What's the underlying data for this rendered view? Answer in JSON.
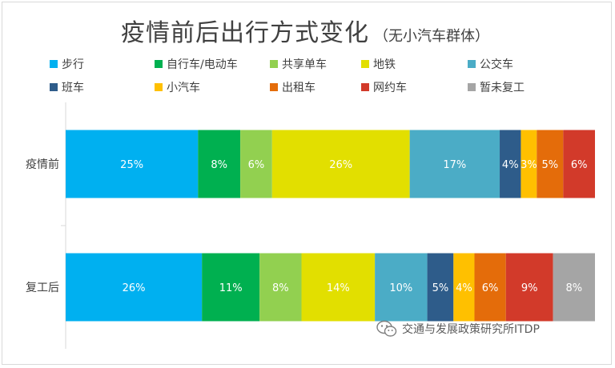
{
  "chart_data": {
    "type": "bar",
    "orientation": "horizontal",
    "stacked": true,
    "title": "疫情前后出行方式变化",
    "subtitle": "（无小汽车群体）",
    "categories": [
      "疫情前",
      "复工后"
    ],
    "series": [
      {
        "name": "步行",
        "color": "#00b0f0",
        "values": [
          25,
          26
        ],
        "labels": [
          "25%",
          "26%"
        ]
      },
      {
        "name": "自行车/电动车",
        "color": "#00b050",
        "values": [
          8,
          11
        ],
        "labels": [
          "8%",
          "11%"
        ]
      },
      {
        "name": "共享单车",
        "color": "#92d050",
        "values": [
          6,
          8
        ],
        "labels": [
          "6%",
          "8%"
        ]
      },
      {
        "name": "地铁",
        "color": "#e2df00",
        "values": [
          26,
          14
        ],
        "labels": [
          "26%",
          "14%"
        ]
      },
      {
        "name": "公交车",
        "color": "#4bacc6",
        "values": [
          17,
          10
        ],
        "labels": [
          "17%",
          "10%"
        ]
      },
      {
        "name": "班车",
        "color": "#2e5c8a",
        "values": [
          4,
          5
        ],
        "labels": [
          "4%",
          "5%"
        ]
      },
      {
        "name": "小汽车",
        "color": "#ffc000",
        "values": [
          3,
          4
        ],
        "labels": [
          "3%",
          "4%"
        ]
      },
      {
        "name": "出租车",
        "color": "#e46c0a",
        "values": [
          5,
          6
        ],
        "labels": [
          "5%",
          "6%"
        ]
      },
      {
        "name": "网约车",
        "color": "#d23a2a",
        "values": [
          6,
          9
        ],
        "labels": [
          "6%",
          "9%"
        ]
      },
      {
        "name": "暂未复工",
        "color": "#a5a5a5",
        "values": [
          0,
          8
        ],
        "labels": [
          "",
          "8%"
        ]
      }
    ],
    "xlim": [
      0,
      100
    ],
    "grid": false,
    "legend_position": "top"
  },
  "watermark": {
    "text": "交通与发展政策研究所ITDP",
    "icon": "wechat-icon"
  },
  "colors": {
    "text": "#404040",
    "label_on_bar": "#ffffff",
    "axis": "#d9d9d9"
  }
}
